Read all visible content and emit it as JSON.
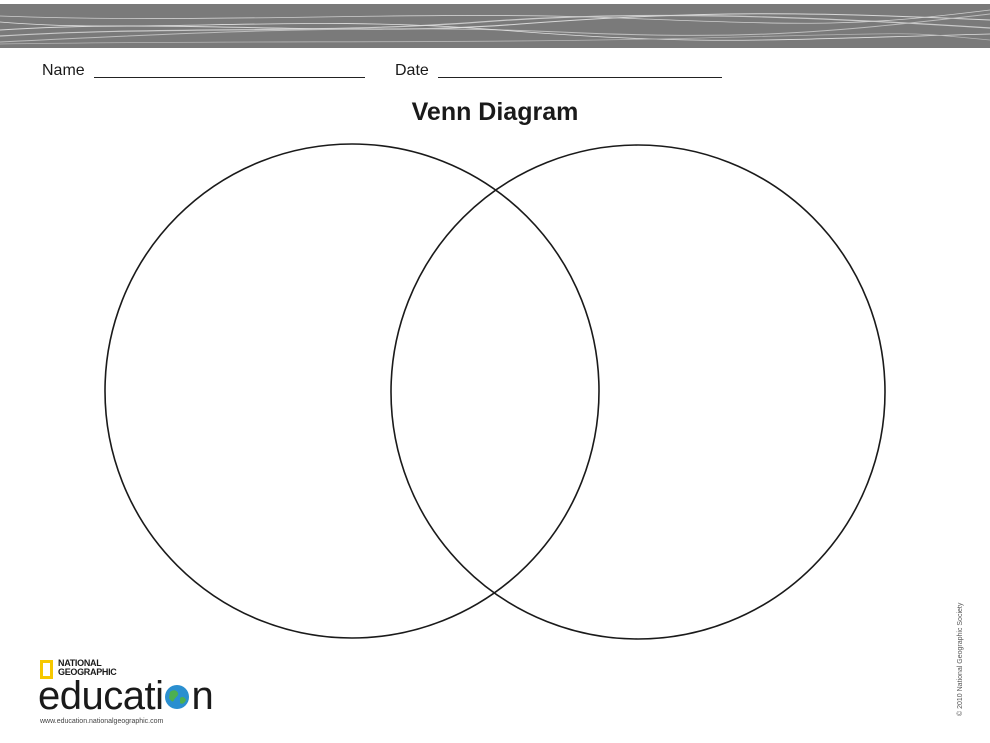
{
  "header": {
    "band_color": "#7a7a7a"
  },
  "fields": {
    "name_label": "Name",
    "date_label": "Date"
  },
  "title": "Venn Diagram",
  "diagram": {
    "type": "venn",
    "circle_count": 2,
    "stroke_color": "#1a1a1a"
  },
  "footer": {
    "brand_top": "NATIONAL\nGEOGRAPHIC",
    "brand_word": "education",
    "url": "www.education.nationalgeographic.com",
    "logo_frame_color": "#f6c800",
    "globe_colors": [
      "#2a8fd0",
      "#4caf50"
    ],
    "copyright": "© 2010 National Geographic Society"
  }
}
